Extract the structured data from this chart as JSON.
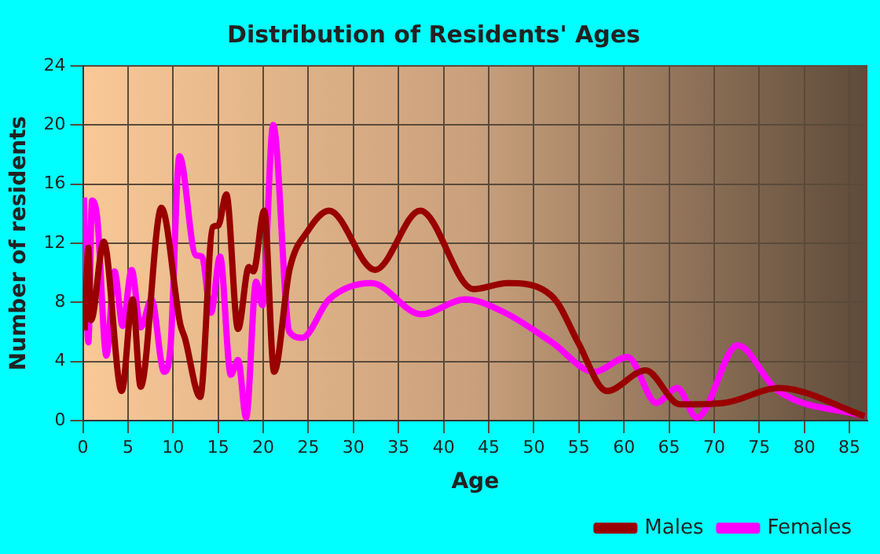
{
  "chart_data": {
    "type": "line",
    "title": "Distribution of Residents' Ages",
    "xlabel": "Age",
    "ylabel": "Number of residents",
    "xlim": [
      0,
      87
    ],
    "xticks": [
      0,
      5,
      10,
      15,
      20,
      25,
      30,
      35,
      40,
      45,
      50,
      55,
      60,
      65,
      70,
      75,
      80,
      85
    ],
    "ylim": [
      0,
      24
    ],
    "yticks": [
      0,
      4,
      8,
      12,
      16,
      20,
      24
    ],
    "grid": true,
    "legend": "bottom right",
    "series": [
      {
        "name": "Males",
        "color": "#990000",
        "x": [
          0.2,
          0.6,
          0.9,
          2.3,
          4.3,
          5.5,
          6.4,
          8.7,
          10.8,
          11.3,
          13.0,
          14.4,
          15.0,
          15.9,
          17.2,
          18.4,
          18.9,
          20.1,
          21.2,
          22.9,
          24.9,
          27.3,
          32.4,
          37.4,
          43.3,
          47.1,
          50.9,
          52.6,
          54.9,
          58.1,
          62.4,
          66.2,
          71.1,
          77.2,
          86.7
        ],
        "values": [
          6.1,
          11.7,
          6.8,
          12.1,
          2.0,
          8.2,
          2.3,
          14.4,
          6.5,
          5.6,
          1.6,
          13.1,
          13.2,
          15.3,
          6.2,
          10.4,
          10.1,
          14.2,
          3.3,
          10.2,
          12.8,
          14.2,
          10.2,
          14.2,
          8.9,
          9.3,
          8.9,
          8.0,
          5.3,
          2.0,
          3.4,
          1.1,
          1.2,
          2.2,
          0.3
        ]
      },
      {
        "name": "Females",
        "color": "#ff00ff",
        "x": [
          0.1,
          0.6,
          1.0,
          1.6,
          2.6,
          3.5,
          4.4,
          5.4,
          6.4,
          7.6,
          9.0,
          9.7,
          10.7,
          12.5,
          13.2,
          14.2,
          15.2,
          16.4,
          17.2,
          18.1,
          19.2,
          19.9,
          21.1,
          22.9,
          24.3,
          27.3,
          32.0,
          37.5,
          42.4,
          46.8,
          52.0,
          56.7,
          60.4,
          63.6,
          65.9,
          68.1,
          72.6,
          76.9,
          86.7
        ],
        "values": [
          15.1,
          5.3,
          14.9,
          13.6,
          4.4,
          10.1,
          6.4,
          10.2,
          6.3,
          8.2,
          3.3,
          4.9,
          17.9,
          11.2,
          11.1,
          7.3,
          11.1,
          3.1,
          4.1,
          0.2,
          9.4,
          7.8,
          20.0,
          6.0,
          5.6,
          8.2,
          9.3,
          7.2,
          8.2,
          7.3,
          5.3,
          3.3,
          4.3,
          1.2,
          2.2,
          0.2,
          5.1,
          2.1,
          0.3
        ]
      }
    ]
  }
}
